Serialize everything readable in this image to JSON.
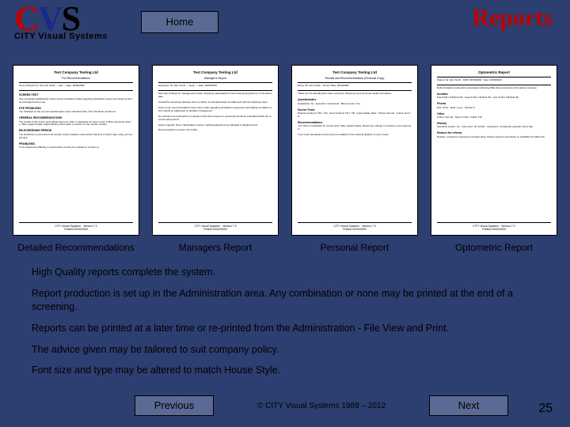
{
  "logo": {
    "c": "C",
    "v": "V",
    "s": "S",
    "c_color": "#c00000",
    "v_color": "#1a2a8a",
    "s_color": "#000000",
    "subtitle": "CITY Visual Systems"
  },
  "nav": {
    "home": "Home",
    "previous": "Previous",
    "next": "Next"
  },
  "page_title": "Reports",
  "reports": [
    {
      "label": "Detailed Recommendations"
    },
    {
      "label": "Managers Report"
    },
    {
      "label": "Personal Report"
    },
    {
      "label": "Optometric Report"
    }
  ],
  "body": [
    "High Quality reports complete the system.",
    "Report production is set up in the Administration area.  Any combination or none may be printed at the end of a screening.",
    "Reports can be printed at a later time or re-printed from the Administration - File View and Print.",
    "The advice given may be tailored to suit company policy.",
    "Font size and type may be altered to match House Style."
  ],
  "copyright": "© CITY Visual Systems 1989 – 2012",
  "page_number": "25",
  "colors": {
    "background": "#2d3e70",
    "button_bg": "#5a6a95",
    "title_color": "#c00000"
  }
}
